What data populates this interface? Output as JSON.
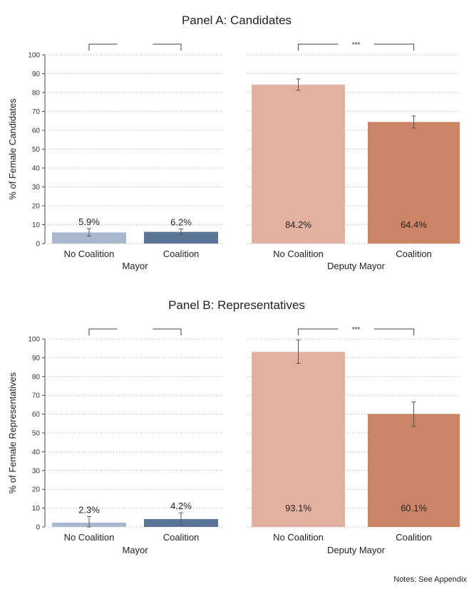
{
  "notes": "Notes: See Appendix",
  "chart_data": [
    {
      "type": "bar",
      "title": "Panel A: Candidates",
      "ylabel": "% of Female Candidates",
      "ylim": [
        0,
        100
      ],
      "yticks": [
        0,
        10,
        20,
        30,
        40,
        50,
        60,
        70,
        80,
        90,
        100
      ],
      "grid": true,
      "groups": [
        {
          "name": "Mayor",
          "significance": "",
          "bars": [
            {
              "category": "No Coalition",
              "value": 5.9,
              "label": "5.9%",
              "ci": [
                3.9,
                7.9
              ],
              "color": "#a9b8cf"
            },
            {
              "category": "Coalition",
              "value": 6.2,
              "label": "6.2%",
              "ci": [
                4.7,
                7.7
              ],
              "color": "#5b7599"
            }
          ]
        },
        {
          "name": "Deputy Mayor",
          "significance": "***",
          "bars": [
            {
              "category": "No Coalition",
              "value": 84.2,
              "label": "84.2%",
              "ci": [
                81.2,
                87.2
              ],
              "color": "#e2b1a1"
            },
            {
              "category": "Coalition",
              "value": 64.4,
              "label": "64.4%",
              "ci": [
                61.2,
                67.6
              ],
              "color": "#cb8466"
            }
          ]
        }
      ]
    },
    {
      "type": "bar",
      "title": "Panel B: Representatives",
      "ylabel": "% of Female Representatives",
      "ylim": [
        0,
        100
      ],
      "yticks": [
        0,
        10,
        20,
        30,
        40,
        50,
        60,
        70,
        80,
        90,
        100
      ],
      "grid": true,
      "groups": [
        {
          "name": "Mayor",
          "significance": "",
          "bars": [
            {
              "category": "No Coalition",
              "value": 2.3,
              "label": "2.3%",
              "ci": [
                0,
                5.5
              ],
              "color": "#a9b8cf"
            },
            {
              "category": "Coalition",
              "value": 4.2,
              "label": "4.2%",
              "ci": [
                1.0,
                7.5
              ],
              "color": "#5b7599"
            }
          ]
        },
        {
          "name": "Deputy Mayor",
          "significance": "***",
          "bars": [
            {
              "category": "No Coalition",
              "value": 93.1,
              "label": "93.1%",
              "ci": [
                87.0,
                99.5
              ],
              "color": "#e2b1a1"
            },
            {
              "category": "Coalition",
              "value": 60.1,
              "label": "60.1%",
              "ci": [
                53.5,
                66.5
              ],
              "color": "#cb8466"
            }
          ]
        }
      ]
    }
  ]
}
